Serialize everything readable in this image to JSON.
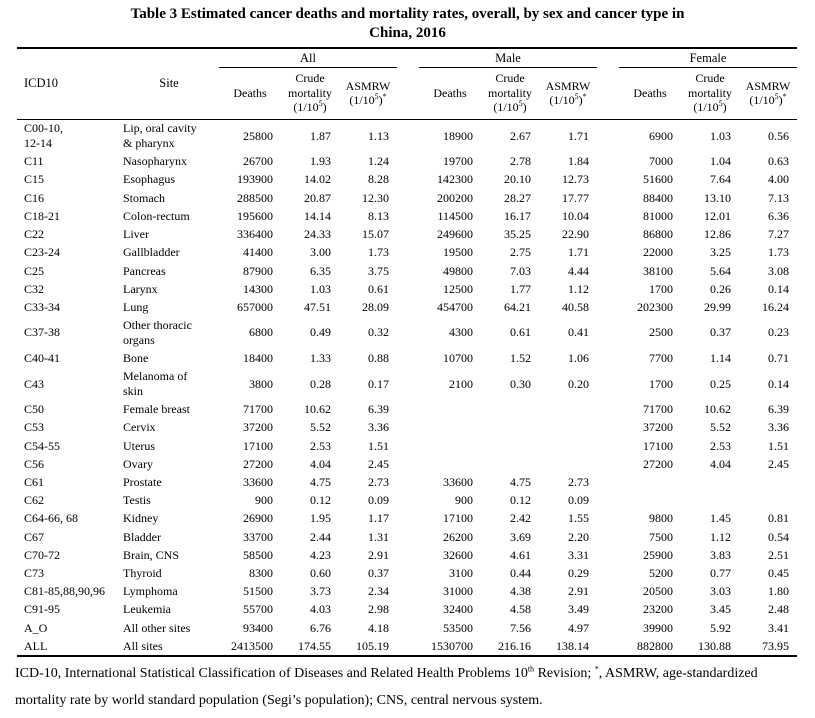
{
  "title": {
    "line1": "Table 3 Estimated cancer deaths and mortality rates, overall, by sex and cancer type in",
    "line2": "China, 2016"
  },
  "table": {
    "corner_headers": {
      "icd10": "ICD10",
      "site": "Site"
    },
    "groups": [
      "All",
      "Male",
      "Female"
    ],
    "sub_headers": [
      {
        "label": "Deaths",
        "unit_parts": []
      },
      {
        "label": "Crude mortality",
        "unit_parts": [
          "(1/10",
          "5",
          ")"
        ]
      },
      {
        "label": "ASMRW",
        "unit_parts": [
          "(1/10",
          "5",
          ")",
          "*"
        ]
      }
    ],
    "rows": [
      {
        "icd10": "C00-10,\n12-14",
        "site": "Lip, oral cavity\n& pharynx",
        "all": [
          "25800",
          "1.87",
          "1.13"
        ],
        "male": [
          "18900",
          "2.67",
          "1.71"
        ],
        "female": [
          "6900",
          "1.03",
          "0.56"
        ]
      },
      {
        "icd10": "C11",
        "site": "Nasopharynx",
        "all": [
          "26700",
          "1.93",
          "1.24"
        ],
        "male": [
          "19700",
          "2.78",
          "1.84"
        ],
        "female": [
          "7000",
          "1.04",
          "0.63"
        ]
      },
      {
        "icd10": "C15",
        "site": "Esophagus",
        "all": [
          "193900",
          "14.02",
          "8.28"
        ],
        "male": [
          "142300",
          "20.10",
          "12.73"
        ],
        "female": [
          "51600",
          "7.64",
          "4.00"
        ]
      },
      {
        "icd10": "C16",
        "site": "Stomach",
        "all": [
          "288500",
          "20.87",
          "12.30"
        ],
        "male": [
          "200200",
          "28.27",
          "17.77"
        ],
        "female": [
          "88400",
          "13.10",
          "7.13"
        ]
      },
      {
        "icd10": "C18-21",
        "site": "Colon-rectum",
        "all": [
          "195600",
          "14.14",
          "8.13"
        ],
        "male": [
          "114500",
          "16.17",
          "10.04"
        ],
        "female": [
          "81000",
          "12.01",
          "6.36"
        ]
      },
      {
        "icd10": "C22",
        "site": "Liver",
        "all": [
          "336400",
          "24.33",
          "15.07"
        ],
        "male": [
          "249600",
          "35.25",
          "22.90"
        ],
        "female": [
          "86800",
          "12.86",
          "7.27"
        ]
      },
      {
        "icd10": "C23-24",
        "site": "Gallbladder",
        "all": [
          "41400",
          "3.00",
          "1.73"
        ],
        "male": [
          "19500",
          "2.75",
          "1.71"
        ],
        "female": [
          "22000",
          "3.25",
          "1.73"
        ]
      },
      {
        "icd10": "C25",
        "site": "Pancreas",
        "all": [
          "87900",
          "6.35",
          "3.75"
        ],
        "male": [
          "49800",
          "7.03",
          "4.44"
        ],
        "female": [
          "38100",
          "5.64",
          "3.08"
        ]
      },
      {
        "icd10": "C32",
        "site": "Larynx",
        "all": [
          "14300",
          "1.03",
          "0.61"
        ],
        "male": [
          "12500",
          "1.77",
          "1.12"
        ],
        "female": [
          "1700",
          "0.26",
          "0.14"
        ]
      },
      {
        "icd10": "C33-34",
        "site": "Lung",
        "all": [
          "657000",
          "47.51",
          "28.09"
        ],
        "male": [
          "454700",
          "64.21",
          "40.58"
        ],
        "female": [
          "202300",
          "29.99",
          "16.24"
        ]
      },
      {
        "icd10": "C37-38",
        "site": "Other thoracic\norgans",
        "all": [
          "6800",
          "0.49",
          "0.32"
        ],
        "male": [
          "4300",
          "0.61",
          "0.41"
        ],
        "female": [
          "2500",
          "0.37",
          "0.23"
        ]
      },
      {
        "icd10": "C40-41",
        "site": "Bone",
        "all": [
          "18400",
          "1.33",
          "0.88"
        ],
        "male": [
          "10700",
          "1.52",
          "1.06"
        ],
        "female": [
          "7700",
          "1.14",
          "0.71"
        ]
      },
      {
        "icd10": "C43",
        "site": "Melanoma of\nskin",
        "all": [
          "3800",
          "0.28",
          "0.17"
        ],
        "male": [
          "2100",
          "0.30",
          "0.20"
        ],
        "female": [
          "1700",
          "0.25",
          "0.14"
        ]
      },
      {
        "icd10": "C50",
        "site": "Female breast",
        "all": [
          "71700",
          "10.62",
          "6.39"
        ],
        "male": [
          "",
          "",
          ""
        ],
        "female": [
          "71700",
          "10.62",
          "6.39"
        ]
      },
      {
        "icd10": "C53",
        "site": "Cervix",
        "all": [
          "37200",
          "5.52",
          "3.36"
        ],
        "male": [
          "",
          "",
          ""
        ],
        "female": [
          "37200",
          "5.52",
          "3.36"
        ]
      },
      {
        "icd10": "C54-55",
        "site": "Uterus",
        "all": [
          "17100",
          "2.53",
          "1.51"
        ],
        "male": [
          "",
          "",
          ""
        ],
        "female": [
          "17100",
          "2.53",
          "1.51"
        ]
      },
      {
        "icd10": "C56",
        "site": "Ovary",
        "all": [
          "27200",
          "4.04",
          "2.45"
        ],
        "male": [
          "",
          "",
          ""
        ],
        "female": [
          "27200",
          "4.04",
          "2.45"
        ]
      },
      {
        "icd10": "C61",
        "site": "Prostate",
        "all": [
          "33600",
          "4.75",
          "2.73"
        ],
        "male": [
          "33600",
          "4.75",
          "2.73"
        ],
        "female": [
          "",
          "",
          ""
        ]
      },
      {
        "icd10": "C62",
        "site": "Testis",
        "all": [
          "900",
          "0.12",
          "0.09"
        ],
        "male": [
          "900",
          "0.12",
          "0.09"
        ],
        "female": [
          "",
          "",
          ""
        ]
      },
      {
        "icd10": "C64-66, 68",
        "site": "Kidney",
        "all": [
          "26900",
          "1.95",
          "1.17"
        ],
        "male": [
          "17100",
          "2.42",
          "1.55"
        ],
        "female": [
          "9800",
          "1.45",
          "0.81"
        ]
      },
      {
        "icd10": "C67",
        "site": "Bladder",
        "all": [
          "33700",
          "2.44",
          "1.31"
        ],
        "male": [
          "26200",
          "3.69",
          "2.20"
        ],
        "female": [
          "7500",
          "1.12",
          "0.54"
        ]
      },
      {
        "icd10": "C70-72",
        "site": "Brain, CNS",
        "all": [
          "58500",
          "4.23",
          "2.91"
        ],
        "male": [
          "32600",
          "4.61",
          "3.31"
        ],
        "female": [
          "25900",
          "3.83",
          "2.51"
        ]
      },
      {
        "icd10": "C73",
        "site": "Thyroid",
        "all": [
          "8300",
          "0.60",
          "0.37"
        ],
        "male": [
          "3100",
          "0.44",
          "0.29"
        ],
        "female": [
          "5200",
          "0.77",
          "0.45"
        ]
      },
      {
        "icd10": "C81-85,88,90,96",
        "site": "Lymphoma",
        "all": [
          "51500",
          "3.73",
          "2.34"
        ],
        "male": [
          "31000",
          "4.38",
          "2.91"
        ],
        "female": [
          "20500",
          "3.03",
          "1.80"
        ]
      },
      {
        "icd10": "C91-95",
        "site": "Leukemia",
        "all": [
          "55700",
          "4.03",
          "2.98"
        ],
        "male": [
          "32400",
          "4.58",
          "3.49"
        ],
        "female": [
          "23200",
          "3.45",
          "2.48"
        ]
      },
      {
        "icd10": "A_O",
        "site": "All other sites",
        "all": [
          "93400",
          "6.76",
          "4.18"
        ],
        "male": [
          "53500",
          "7.56",
          "4.97"
        ],
        "female": [
          "39900",
          "5.92",
          "3.41"
        ]
      },
      {
        "icd10": "ALL",
        "site": "All sites",
        "all": [
          "2413500",
          "174.55",
          "105.19"
        ],
        "male": [
          "1530700",
          "216.16",
          "138.14"
        ],
        "female": [
          "882800",
          "130.88",
          "73.95"
        ]
      }
    ]
  },
  "footnote": {
    "parts": [
      "ICD-10, International Statistical Classification of Diseases and Related Health Problems 10",
      "th",
      " Revision; ",
      "*",
      ", ASMRW, age-standardized mortality rate by world standard population (Segi’s population); CNS, central nervous system."
    ]
  }
}
